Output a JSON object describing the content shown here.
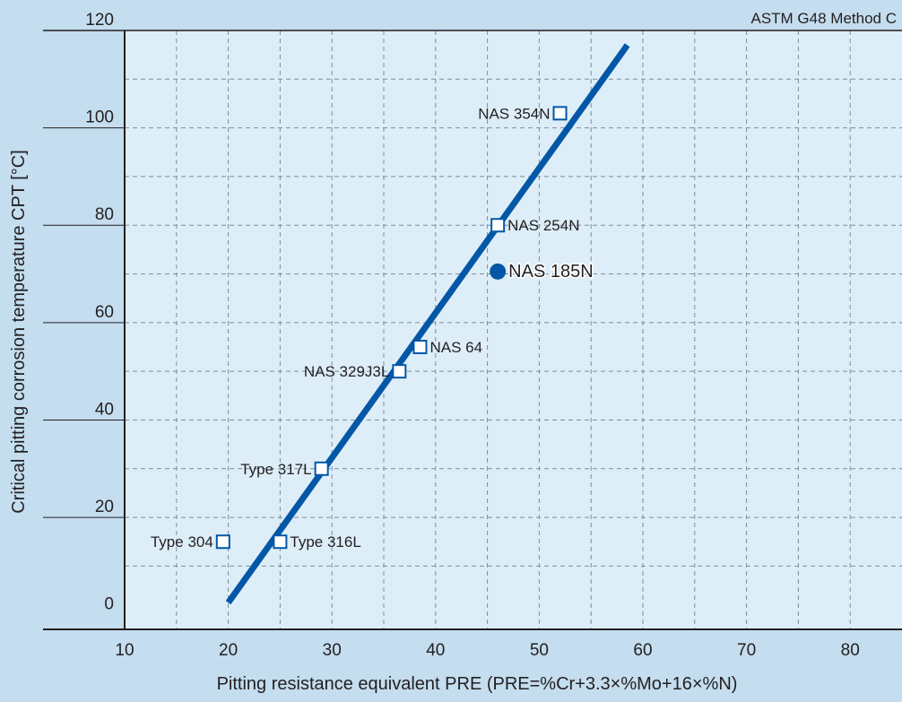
{
  "chart_data": {
    "type": "scatter",
    "annotation": "ASTM G48 Method C",
    "xlabel": "Pitting resistance equivalent  PRE (PRE=%Cr+3.3×%Mo+16×%N)",
    "ylabel": "Critical pitting corrosion temperature CPT [°C]",
    "xlim": [
      10,
      85
    ],
    "ylim": [
      -3,
      120
    ],
    "xticks": [
      10,
      20,
      30,
      40,
      50,
      60,
      70,
      80
    ],
    "yticks": [
      0,
      20,
      40,
      60,
      80,
      100,
      120
    ],
    "grid": true,
    "trend_line": {
      "x": [
        20.0,
        58.5
      ],
      "y": 2.5,
      "y_end": 117
    },
    "points": [
      {
        "label": "Type 304",
        "x": 19.5,
        "y": 15,
        "marker": "open-square",
        "label_side": "left"
      },
      {
        "label": "Type 316L",
        "x": 25,
        "y": 15,
        "marker": "open-square",
        "label_side": "right"
      },
      {
        "label": "Type 317L",
        "x": 29,
        "y": 30,
        "marker": "open-square",
        "label_side": "left"
      },
      {
        "label": "NAS 329J3L",
        "x": 36.5,
        "y": 50,
        "marker": "open-square",
        "label_side": "left"
      },
      {
        "label": "NAS 64",
        "x": 38.5,
        "y": 55,
        "marker": "open-square",
        "label_side": "right"
      },
      {
        "label": "NAS 254N",
        "x": 46,
        "y": 80,
        "marker": "open-square",
        "label_side": "right"
      },
      {
        "label": "NAS 185N",
        "x": 46,
        "y": 70.5,
        "marker": "filled-circle",
        "label_side": "right"
      },
      {
        "label": "NAS 354N",
        "x": 52,
        "y": 103,
        "marker": "open-square",
        "label_side": "left"
      }
    ],
    "colors": {
      "background": "#c4ddef",
      "plot_bg": "#ddeef9",
      "line": "#0457a7",
      "grid": "#7d8d99",
      "marker_fill": "#ffffff",
      "highlight": "#0457a7"
    }
  }
}
